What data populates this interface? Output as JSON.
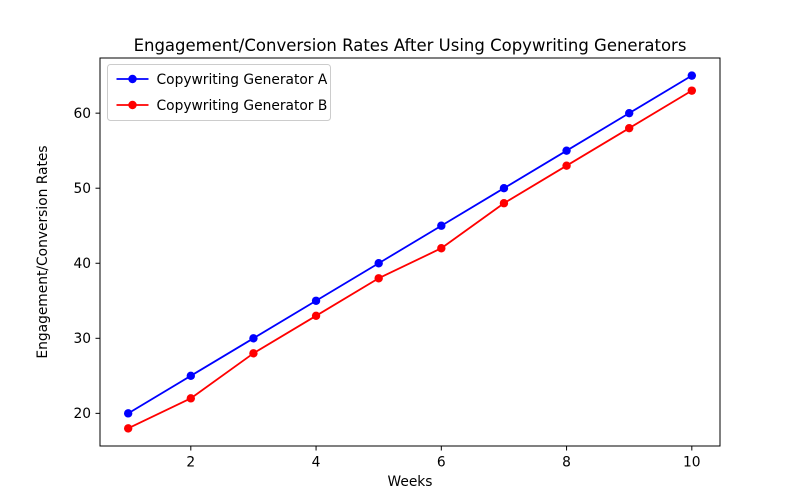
{
  "figure": {
    "background": "#ffffff"
  },
  "chart_data": {
    "type": "line",
    "title": "Engagement/Conversion Rates After Using Copywriting Generators",
    "xlabel": "Weeks",
    "ylabel": "Engagement/Conversion Rates",
    "x": [
      1,
      2,
      3,
      4,
      5,
      6,
      7,
      8,
      9,
      10
    ],
    "series": [
      {
        "name": "Copywriting Generator A",
        "color": "#0000ff",
        "marker": "circle",
        "values": [
          20,
          25,
          30,
          35,
          40,
          45,
          50,
          55,
          60,
          65
        ]
      },
      {
        "name": "Copywriting Generator B",
        "color": "#ff0000",
        "marker": "circle",
        "values": [
          18,
          22,
          28,
          33,
          38,
          42,
          48,
          53,
          58,
          63
        ]
      }
    ],
    "xticks": [
      2,
      4,
      6,
      8,
      10
    ],
    "yticks": [
      20,
      30,
      40,
      50,
      60
    ],
    "xlim": [
      0.55,
      10.45
    ],
    "ylim": [
      15.65,
      67.35
    ],
    "grid": false,
    "legend_position": "upper left",
    "axis_color": "#000000",
    "legend_border_color": "#cccccc",
    "background_color": "#ffffff"
  }
}
